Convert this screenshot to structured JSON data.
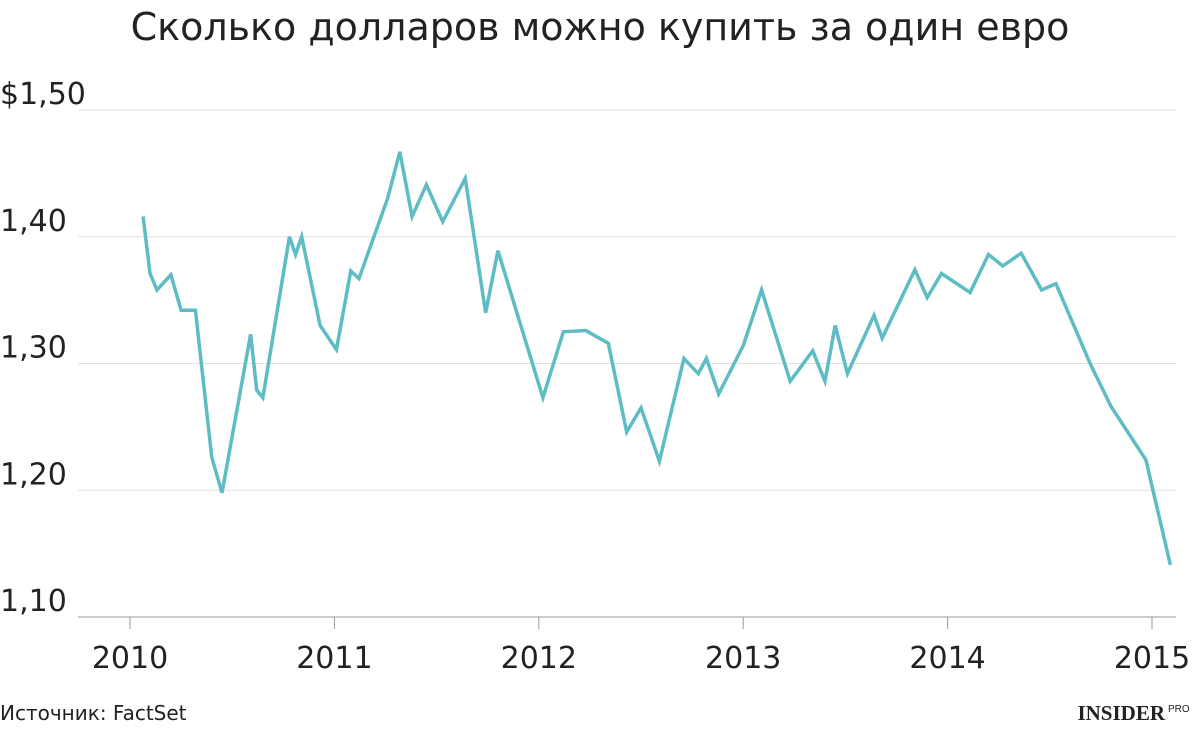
{
  "chart_data": {
    "type": "line",
    "title": "Сколько долларов можно купить за один евро",
    "source": "Источник: FactSet",
    "brand": {
      "name": "INSIDER",
      "suffix": "PRO"
    },
    "color": "#5dbcc4",
    "grid": true,
    "x": [
      2010.064,
      2010.098,
      2010.132,
      2010.2,
      2010.25,
      2010.32,
      2010.4,
      2010.45,
      2010.59,
      2010.62,
      2010.65,
      2010.78,
      2010.81,
      2010.84,
      2010.93,
      2011.01,
      2011.08,
      2011.12,
      2011.26,
      2011.32,
      2011.38,
      2011.45,
      2011.53,
      2011.64,
      2011.74,
      2011.8,
      2012.02,
      2012.12,
      2012.23,
      2012.34,
      2012.43,
      2012.5,
      2012.59,
      2012.71,
      2012.78,
      2012.82,
      2012.88,
      2013.0,
      2013.09,
      2013.23,
      2013.34,
      2013.4,
      2013.45,
      2013.51,
      2013.64,
      2013.68,
      2013.84,
      2013.9,
      2013.97,
      2014.11,
      2014.2,
      2014.27,
      2014.36,
      2014.46,
      2014.53,
      2014.7,
      2014.8,
      2014.97,
      2015.09
    ],
    "values": [
      1.416,
      1.371,
      1.358,
      1.37,
      1.342,
      1.342,
      1.226,
      1.198,
      1.323,
      1.279,
      1.273,
      1.4,
      1.386,
      1.4,
      1.33,
      1.311,
      1.373,
      1.367,
      1.43,
      1.467,
      1.416,
      1.441,
      1.412,
      1.446,
      1.34,
      1.389,
      1.273,
      1.325,
      1.326,
      1.316,
      1.246,
      1.265,
      1.223,
      1.304,
      1.292,
      1.304,
      1.276,
      1.314,
      1.358,
      1.286,
      1.31,
      1.286,
      1.33,
      1.292,
      1.338,
      1.32,
      1.374,
      1.352,
      1.371,
      1.356,
      1.386,
      1.377,
      1.387,
      1.358,
      1.363,
      1.299,
      1.266,
      1.224,
      1.141
    ],
    "xlim": [
      2010,
      2015
    ],
    "xticks": [
      2010,
      2011,
      2012,
      2013,
      2014,
      2015
    ],
    "ylim": [
      1.1,
      1.5
    ],
    "yticks": [
      {
        "value": 1.1,
        "label": "1,10"
      },
      {
        "value": 1.2,
        "label": "1,20"
      },
      {
        "value": 1.3,
        "label": "1,30"
      },
      {
        "value": 1.4,
        "label": "1,40"
      },
      {
        "value": 1.5,
        "label": "$1,50"
      }
    ]
  }
}
